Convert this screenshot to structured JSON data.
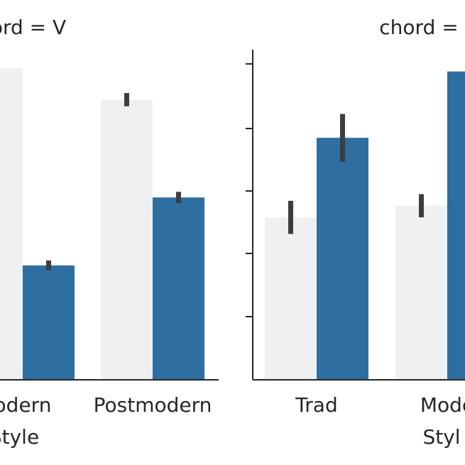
{
  "chart_data": [
    {
      "type": "bar",
      "title": "chord = V",
      "xlabel": "Style",
      "ylabel": "",
      "ylim": [
        0,
        1
      ],
      "categories": [
        "Modern",
        "Postmodern"
      ],
      "visible_tick_labels": [
        "odern",
        "Postmodern"
      ],
      "xlabel_visible": "Style",
      "title_visible": "ord = V",
      "series": [
        {
          "color": "#eef0f1",
          "values": [
            0.94,
            0.845
          ],
          "err": [
            0.0,
            0.02
          ]
        },
        {
          "color": "#2e6ea0",
          "values": [
            0.345,
            0.55
          ],
          "err": [
            0.015,
            0.017
          ]
        }
      ]
    },
    {
      "type": "bar",
      "title": "chord = ",
      "xlabel": "Style",
      "ylabel": "",
      "ylim": [
        0,
        1
      ],
      "categories": [
        "Trad",
        "Modern"
      ],
      "visible_tick_labels": [
        "Trad",
        "Mode"
      ],
      "xlabel_visible": "Styl",
      "title_visible": "chord =",
      "series": [
        {
          "color": "#eef0f1",
          "values": [
            0.49,
            0.525
          ],
          "err": [
            0.05,
            0.035
          ]
        },
        {
          "color": "#2e6ea0",
          "values": [
            0.73,
            0.93
          ],
          "err": [
            0.072,
            0.0
          ]
        }
      ]
    }
  ],
  "axis_color": "#262626",
  "errbar_color": "#3d3d3d"
}
